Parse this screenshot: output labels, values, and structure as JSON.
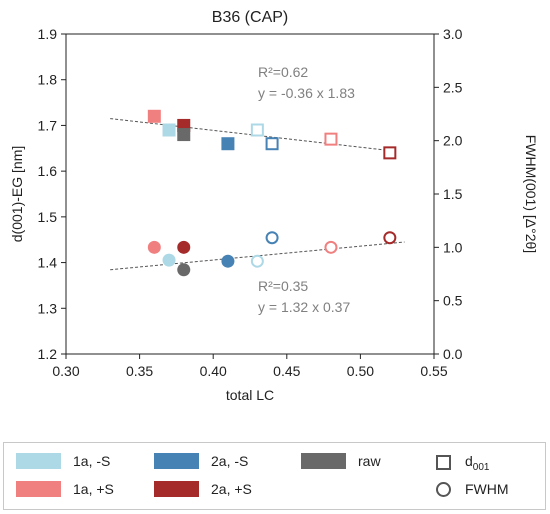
{
  "chart_data": {
    "type": "scatter",
    "title": "B36 (CAP)",
    "xlabel": "total LC",
    "ylabel_left": "d(001)-EG [nm]",
    "ylabel_right": "FWHM(001) [Δ°2θ]",
    "xlim": [
      0.3,
      0.55
    ],
    "ylim_left": [
      1.2,
      1.9
    ],
    "ylim_right": [
      0.0,
      3.0
    ],
    "x_ticks": [
      "0.30",
      "0.35",
      "0.40",
      "0.45",
      "0.50",
      "0.55"
    ],
    "y_left_ticks": [
      "1.2",
      "1.3",
      "1.4",
      "1.5",
      "1.6",
      "1.7",
      "1.8",
      "1.9"
    ],
    "y_right_ticks": [
      "0.0",
      "0.5",
      "1.0",
      "1.5",
      "2.0",
      "2.5",
      "3.0"
    ],
    "grid": false,
    "series": [
      {
        "name": "1a, -S",
        "color": "#add8e6",
        "d001": [
          {
            "x": 0.37,
            "y": 1.69,
            "filled": true
          },
          {
            "x": 0.43,
            "y": 1.69,
            "filled": false
          }
        ],
        "fwhm": [
          {
            "x": 0.37,
            "y": 0.88,
            "filled": true
          },
          {
            "x": 0.43,
            "y": 0.87,
            "filled": false
          }
        ]
      },
      {
        "name": "1a, +S",
        "color": "#f08080",
        "d001": [
          {
            "x": 0.36,
            "y": 1.72,
            "filled": true
          },
          {
            "x": 0.48,
            "y": 1.67,
            "filled": false
          }
        ],
        "fwhm": [
          {
            "x": 0.36,
            "y": 1.0,
            "filled": true
          },
          {
            "x": 0.48,
            "y": 1.0,
            "filled": false
          }
        ]
      },
      {
        "name": "2a, -S",
        "color": "#4682b4",
        "d001": [
          {
            "x": 0.41,
            "y": 1.66,
            "filled": true
          },
          {
            "x": 0.44,
            "y": 1.66,
            "filled": false
          }
        ],
        "fwhm": [
          {
            "x": 0.41,
            "y": 0.87,
            "filled": true
          },
          {
            "x": 0.44,
            "y": 1.09,
            "filled": false
          }
        ]
      },
      {
        "name": "2a, +S",
        "color": "#a52a2a",
        "d001": [
          {
            "x": 0.38,
            "y": 1.7,
            "filled": true
          },
          {
            "x": 0.52,
            "y": 1.64,
            "filled": false
          }
        ],
        "fwhm": [
          {
            "x": 0.38,
            "y": 1.0,
            "filled": true
          },
          {
            "x": 0.52,
            "y": 1.09,
            "filled": false
          }
        ]
      },
      {
        "name": "raw",
        "color": "#696969",
        "d001": [
          {
            "x": 0.38,
            "y": 1.68,
            "filled": true
          }
        ],
        "fwhm": [
          {
            "x": 0.38,
            "y": 0.79,
            "filled": true
          }
        ]
      }
    ],
    "trendlines": [
      {
        "axis": "left",
        "x": [
          0.33,
          0.52
        ],
        "y": [
          1.715,
          1.645
        ]
      },
      {
        "axis": "right",
        "x": [
          0.33,
          0.53
        ],
        "y": [
          0.79,
          1.05
        ]
      }
    ],
    "annotations": [
      {
        "r2": "R²=0.62",
        "eq": "y = -0.36 x 1.83"
      },
      {
        "r2": "R²=0.35",
        "eq": "y = 1.32 x 0.37"
      }
    ],
    "legend": {
      "placement": "bottom",
      "marker_items": [
        {
          "shape": "square",
          "label": "d",
          "sub": "001"
        },
        {
          "shape": "circle",
          "label": "FWHM",
          "sub": ""
        }
      ]
    }
  }
}
